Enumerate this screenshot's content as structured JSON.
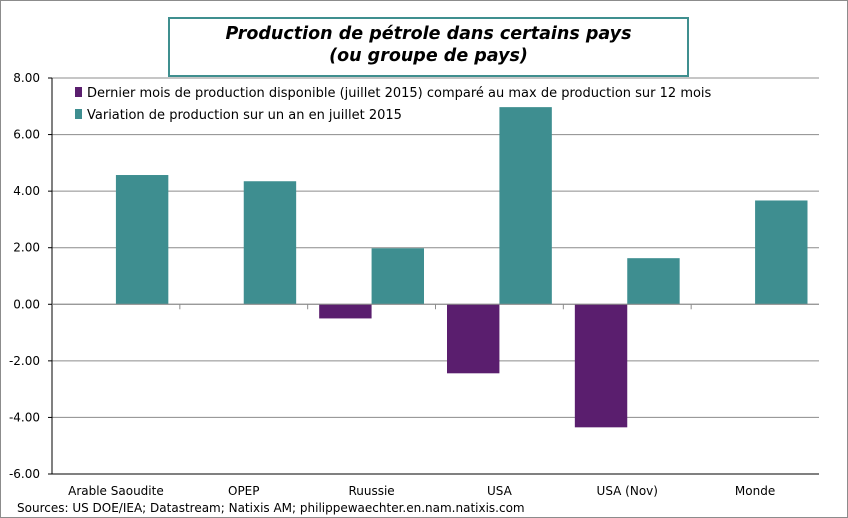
{
  "chart_data": {
    "type": "bar",
    "title_line1": "Production de pétrole dans certains pays",
    "title_line2": "(ou groupe de pays)",
    "categories": [
      "Arable Saoudite",
      "OPEP",
      "Ruussie",
      "USA",
      "USA (Nov)",
      "Monde"
    ],
    "series": [
      {
        "name": "Dernier mois de production disponible (juillet 2015) comparé au max de production sur 12 mois",
        "color": "#5a1e6e",
        "values": [
          null,
          null,
          -0.5,
          -2.44,
          -4.35,
          null
        ]
      },
      {
        "name": "Variation de production sur un an en juillet 2015",
        "color": "#3e8e90",
        "values": [
          4.57,
          4.35,
          1.98,
          6.97,
          1.63,
          3.67
        ]
      }
    ],
    "yticks": [
      "8.00",
      "6.00",
      "4.00",
      "2.00",
      "0.00",
      "-2.00",
      "-4.00",
      "-6.00"
    ],
    "ylim": [
      -6,
      8
    ],
    "grid": true,
    "legend": "top-left",
    "source": "Sources: US DOE/IEA; Datastream; Natixis AM; philippewaechter.en.nam.natixis.com"
  }
}
